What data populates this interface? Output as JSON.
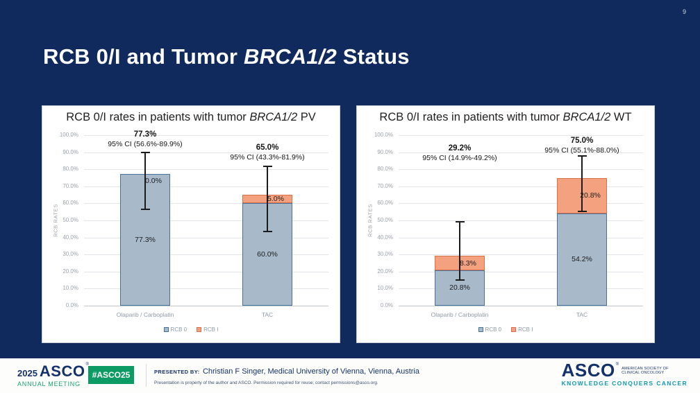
{
  "slide": {
    "page_number": "9",
    "title_prefix": "RCB 0/I and Tumor ",
    "title_italic": "BRCA1/2",
    "title_suffix": " Status",
    "colors": {
      "background": "#112a5e",
      "rcb0_fill": "#a8b9ca",
      "rcb0_border": "#44719e",
      "rcb1_fill": "#f4a17f",
      "rcb1_border": "#df6e47",
      "error_bar": "#1b1b1b",
      "hashtag_green": "#0c9b63",
      "meeting_green": "#16a06d",
      "tagline_teal": "#0f9aae",
      "footer_navy": "#14316b"
    }
  },
  "chart_data": [
    {
      "type": "bar",
      "stacked": true,
      "title_prefix": "RCB 0/I rates in patients with tumor ",
      "title_italic": "BRCA1/2",
      "title_suffix": " PV",
      "ylabel": "RCB RATES",
      "xlabel": "",
      "ylim": [
        0,
        100
      ],
      "ytick_step": 10,
      "ytick_suffix": "%",
      "grid": true,
      "legend_position": "bottom",
      "categories": [
        "Olaparib / Carboplatin",
        "TAC"
      ],
      "series": [
        {
          "name": "RCB 0",
          "values": [
            77.3,
            60.0
          ]
        },
        {
          "name": "RCB I",
          "values": [
            0.0,
            5.0
          ]
        }
      ],
      "segment_labels": [
        [
          "77.3%",
          "0.0%"
        ],
        [
          "60.0%",
          "5.0%"
        ]
      ],
      "totals": [
        {
          "value": "77.3%",
          "ci": "95% CI (56.6%-89.9%)",
          "ci_low": 56.6,
          "ci_high": 89.9
        },
        {
          "value": "65.0%",
          "ci": "95% CI (43.3%-81.9%)",
          "ci_low": 43.3,
          "ci_high": 81.9
        }
      ],
      "annotation_tops": [
        34,
        53
      ]
    },
    {
      "type": "bar",
      "stacked": true,
      "title_prefix": "RCB 0/I rates in patients with tumor ",
      "title_italic": "BRCA1/2",
      "title_suffix": " WT",
      "ylabel": "RCB RATES",
      "xlabel": "",
      "ylim": [
        0,
        100
      ],
      "ytick_step": 10,
      "ytick_suffix": "%",
      "grid": true,
      "legend_position": "bottom",
      "categories": [
        "Olaparib / Carboplatin",
        "TAC"
      ],
      "series": [
        {
          "name": "RCB 0",
          "values": [
            20.8,
            54.2
          ]
        },
        {
          "name": "RCB I",
          "values": [
            8.3,
            20.8
          ]
        }
      ],
      "segment_labels": [
        [
          "20.8%",
          "8.3%"
        ],
        [
          "54.2%",
          "20.8%"
        ]
      ],
      "totals": [
        {
          "value": "29.2%",
          "ci": "95% CI (14.9%-49.2%)",
          "ci_low": 14.9,
          "ci_high": 49.2
        },
        {
          "value": "75.0%",
          "ci": "95% CI (55.1%-88.0%)",
          "ci_low": 55.1,
          "ci_high": 88.0
        }
      ],
      "annotation_tops": [
        54,
        43
      ]
    }
  ],
  "footer": {
    "meeting_year": "2025",
    "meeting_org": "ASCO",
    "meeting_name": "ANNUAL MEETING",
    "reg_mark": "®",
    "hashtag": "#ASCO25",
    "presented_by_label": "PRESENTED BY:",
    "presenter": "Christian F Singer, Medical University of Vienna, Vienna, Austria",
    "disclaimer": "Presentation is property of the author and ASCO. Permission required for reuse; contact permissions@asco.org.",
    "logo_org": "ASCO",
    "logo_sub1": "AMERICAN SOCIETY OF",
    "logo_sub2": "CLINICAL ONCOLOGY",
    "logo_tagline": "KNOWLEDGE CONQUERS CANCER"
  }
}
